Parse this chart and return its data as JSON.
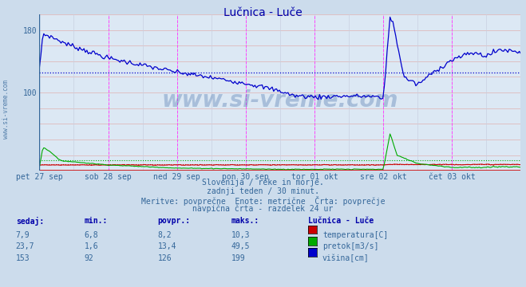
{
  "title": "Lučnica - Luče",
  "bg_color": "#ccdcec",
  "plot_bg": "#dce8f4",
  "x_labels": [
    "pet 27 sep",
    "sob 28 sep",
    "ned 29 sep",
    "pon 30 sep",
    "tor 01 okt",
    "sre 02 okt",
    "čet 03 okt"
  ],
  "y_ticks": [
    100,
    180
  ],
  "avg_blue": 126,
  "avg_green": 13.4,
  "avg_red": 8.2,
  "subtitle1": "Slovenija / reke in morje.",
  "subtitle2": "zadnji teden / 30 minut.",
  "subtitle3": "Meritve: povprečne  Enote: metrične  Črta: povprečje",
  "subtitle4": "navpična črta - razdelek 24 ur",
  "col_headers": [
    "sedaj:",
    "min.:",
    "povpr.:",
    "maks.:"
  ],
  "col_header_station": "Lučnica - Luče",
  "rows": [
    {
      "sedaj": "7,9",
      "min": "6,8",
      "povpr": "8,2",
      "maks": "10,3",
      "color": "#cc0000",
      "label": "temperatura[C]"
    },
    {
      "sedaj": "23,7",
      "min": "1,6",
      "povpr": "13,4",
      "maks": "49,5",
      "color": "#00aa00",
      "label": "pretok[m3/s]"
    },
    {
      "sedaj": "153",
      "min": "92",
      "povpr": "126",
      "maks": "199",
      "color": "#0000cc",
      "label": "višina[cm]"
    }
  ],
  "vline_color": "#ff44ff",
  "grid_color_h": "#e8a0a0",
  "grid_color_v": "#c8d0e0",
  "n_points": 336,
  "watermark": "www.si-vreme.com",
  "ylim": [
    0,
    200
  ],
  "xlim": [
    0,
    7
  ]
}
